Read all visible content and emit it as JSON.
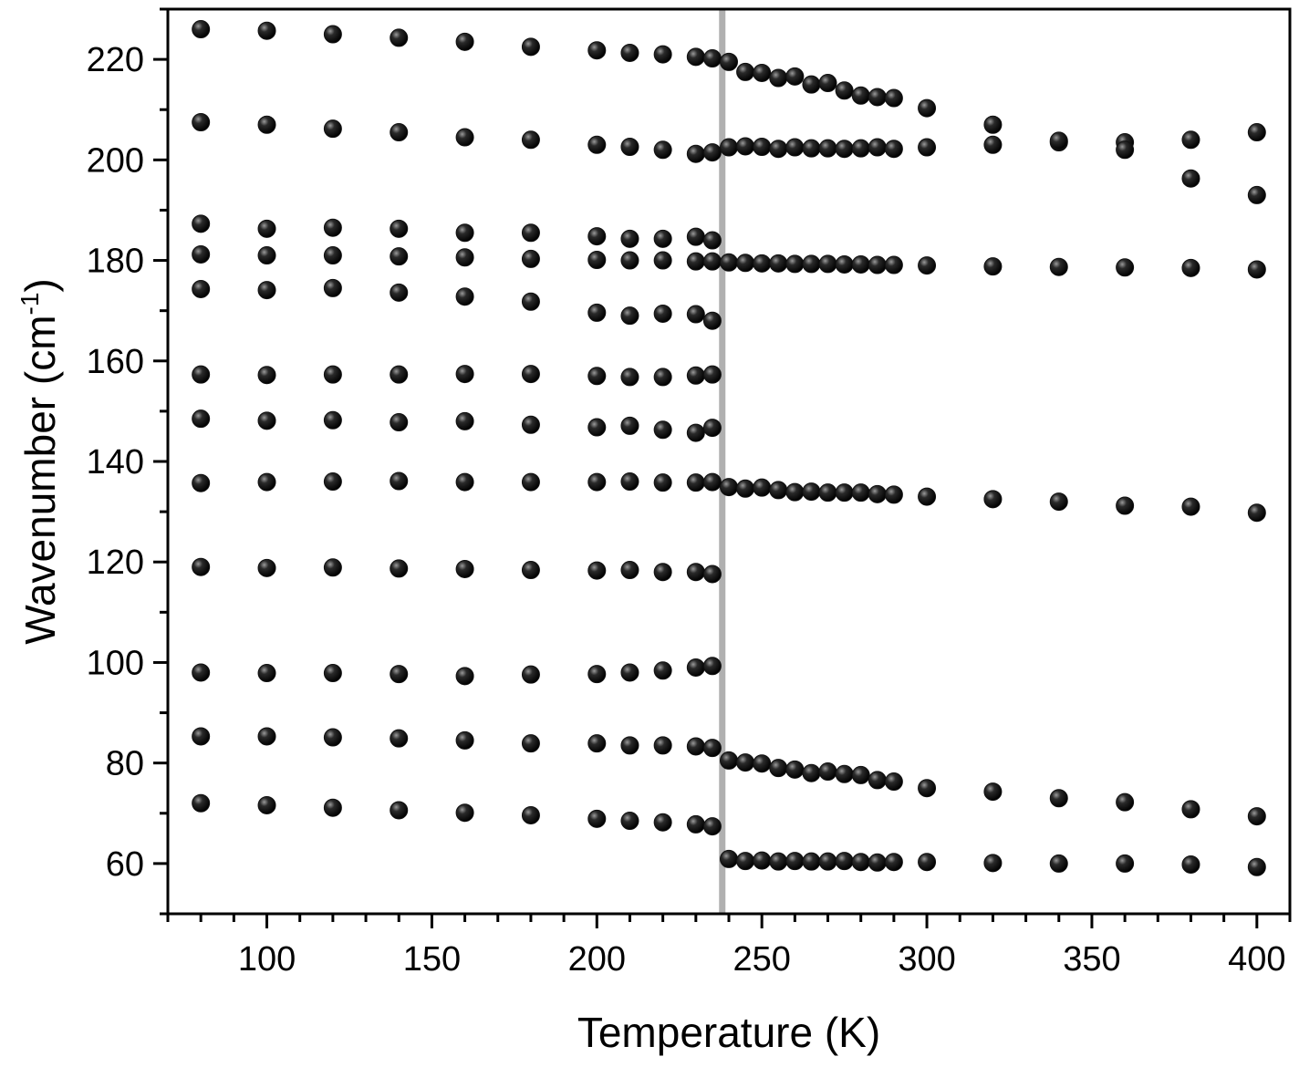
{
  "chart_data": {
    "type": "scatter",
    "title": "",
    "xlabel": "Temperature (K)",
    "ylabel": {
      "main": "Wavenumber (cm",
      "superscript": "-1",
      "close": ")"
    },
    "xlim": [
      70,
      410
    ],
    "ylim": [
      50,
      230
    ],
    "x_ticks": [
      100,
      150,
      200,
      250,
      300,
      350,
      400
    ],
    "y_ticks": [
      60,
      80,
      100,
      120,
      140,
      160,
      180,
      200,
      220
    ],
    "grid": false,
    "legend": "none",
    "marker_color": "#111111",
    "transition_line": {
      "x": 238,
      "color": "#b0b0b0"
    },
    "series": [
      {
        "points": [
          [
            80,
            226
          ],
          [
            100,
            225.7
          ],
          [
            120,
            225
          ],
          [
            140,
            224.3
          ],
          [
            160,
            223.5
          ],
          [
            180,
            222.5
          ],
          [
            200,
            221.8
          ],
          [
            210,
            221.3
          ],
          [
            220,
            221
          ],
          [
            230,
            220.5
          ],
          [
            235,
            220.2
          ],
          [
            240,
            219.5
          ],
          [
            245,
            217.5
          ],
          [
            250,
            217.3
          ],
          [
            255,
            216.3
          ],
          [
            260,
            216.6
          ],
          [
            265,
            215
          ],
          [
            270,
            215.3
          ],
          [
            275,
            213.8
          ],
          [
            280,
            212.8
          ],
          [
            285,
            212.5
          ],
          [
            290,
            212.3
          ],
          [
            300,
            210.3
          ]
        ]
      },
      {
        "points": [
          [
            80,
            207.5
          ],
          [
            100,
            207
          ],
          [
            120,
            206.2
          ],
          [
            140,
            205.5
          ],
          [
            160,
            204.5
          ],
          [
            180,
            204
          ],
          [
            200,
            203
          ],
          [
            210,
            202.6
          ],
          [
            220,
            202
          ],
          [
            230,
            201.2
          ],
          [
            235,
            201.5
          ],
          [
            240,
            202.5
          ],
          [
            245,
            202.7
          ],
          [
            250,
            202.6
          ],
          [
            255,
            202.2
          ],
          [
            260,
            202.5
          ],
          [
            265,
            202.3
          ],
          [
            270,
            202.3
          ],
          [
            275,
            202.2
          ],
          [
            280,
            202.3
          ],
          [
            285,
            202.5
          ],
          [
            290,
            202.2
          ],
          [
            300,
            202.5
          ],
          [
            320,
            203
          ],
          [
            340,
            203.5
          ],
          [
            360,
            203.5
          ],
          [
            380,
            204
          ],
          [
            400,
            205.5
          ]
        ]
      },
      {
        "points": [
          [
            320,
            207
          ],
          [
            340,
            203.8
          ],
          [
            360,
            202
          ]
        ]
      },
      {
        "points": [
          [
            380,
            196.3
          ],
          [
            400,
            193
          ]
        ]
      },
      {
        "points": [
          [
            80,
            187.3
          ],
          [
            100,
            186.3
          ],
          [
            120,
            186.5
          ],
          [
            140,
            186.3
          ],
          [
            160,
            185.5
          ],
          [
            180,
            185.5
          ],
          [
            200,
            184.8
          ],
          [
            210,
            184.3
          ],
          [
            220,
            184.3
          ],
          [
            230,
            184.7
          ],
          [
            235,
            184
          ]
        ]
      },
      {
        "points": [
          [
            80,
            181.2
          ],
          [
            100,
            181
          ],
          [
            120,
            181
          ],
          [
            140,
            180.8
          ],
          [
            160,
            180.6
          ],
          [
            180,
            180.3
          ],
          [
            200,
            180.1
          ],
          [
            210,
            180
          ],
          [
            220,
            180
          ],
          [
            230,
            179.8
          ],
          [
            235,
            179.8
          ],
          [
            240,
            179.6
          ],
          [
            245,
            179.5
          ],
          [
            250,
            179.4
          ],
          [
            255,
            179.4
          ],
          [
            260,
            179.3
          ],
          [
            265,
            179.3
          ],
          [
            270,
            179.3
          ],
          [
            275,
            179.2
          ],
          [
            280,
            179.2
          ],
          [
            285,
            179.1
          ],
          [
            290,
            179.1
          ],
          [
            300,
            179
          ],
          [
            320,
            178.8
          ],
          [
            340,
            178.7
          ],
          [
            360,
            178.6
          ],
          [
            380,
            178.5
          ],
          [
            400,
            178.2
          ]
        ]
      },
      {
        "points": [
          [
            80,
            174.3
          ],
          [
            100,
            174.1
          ],
          [
            120,
            174.5
          ],
          [
            140,
            173.6
          ],
          [
            160,
            172.8
          ],
          [
            180,
            171.8
          ],
          [
            200,
            169.6
          ],
          [
            210,
            169
          ],
          [
            220,
            169.4
          ],
          [
            230,
            169.3
          ],
          [
            235,
            168
          ]
        ]
      },
      {
        "points": [
          [
            80,
            157.3
          ],
          [
            100,
            157.2
          ],
          [
            120,
            157.3
          ],
          [
            140,
            157.3
          ],
          [
            160,
            157.4
          ],
          [
            180,
            157.4
          ],
          [
            200,
            157
          ],
          [
            210,
            156.8
          ],
          [
            220,
            156.8
          ],
          [
            230,
            157.1
          ],
          [
            235,
            157.3
          ]
        ]
      },
      {
        "points": [
          [
            80,
            148.5
          ],
          [
            100,
            148.1
          ],
          [
            120,
            148.2
          ],
          [
            140,
            147.8
          ],
          [
            160,
            148
          ],
          [
            180,
            147.3
          ],
          [
            200,
            146.8
          ],
          [
            210,
            147.1
          ],
          [
            220,
            146.3
          ],
          [
            230,
            145.7
          ],
          [
            235,
            146.7
          ]
        ]
      },
      {
        "points": [
          [
            80,
            135.7
          ],
          [
            100,
            135.9
          ],
          [
            120,
            136
          ],
          [
            140,
            136.1
          ],
          [
            160,
            135.9
          ],
          [
            180,
            135.9
          ],
          [
            200,
            135.9
          ],
          [
            210,
            136
          ],
          [
            220,
            135.8
          ],
          [
            230,
            135.8
          ],
          [
            235,
            135.9
          ],
          [
            240,
            134.9
          ],
          [
            245,
            134.6
          ],
          [
            250,
            134.8
          ],
          [
            255,
            134.3
          ],
          [
            260,
            133.9
          ],
          [
            265,
            134
          ],
          [
            270,
            133.8
          ],
          [
            275,
            133.8
          ],
          [
            280,
            133.8
          ],
          [
            285,
            133.5
          ],
          [
            290,
            133.4
          ],
          [
            300,
            133
          ],
          [
            320,
            132.5
          ],
          [
            340,
            132
          ],
          [
            360,
            131.2
          ],
          [
            380,
            131
          ],
          [
            400,
            129.8
          ]
        ]
      },
      {
        "points": [
          [
            80,
            119
          ],
          [
            100,
            118.8
          ],
          [
            120,
            118.9
          ],
          [
            140,
            118.7
          ],
          [
            160,
            118.6
          ],
          [
            180,
            118.4
          ],
          [
            200,
            118.3
          ],
          [
            210,
            118.4
          ],
          [
            220,
            118
          ],
          [
            230,
            118
          ],
          [
            235,
            117.6
          ]
        ]
      },
      {
        "points": [
          [
            80,
            98
          ],
          [
            100,
            97.9
          ],
          [
            120,
            97.9
          ],
          [
            140,
            97.7
          ],
          [
            160,
            97.3
          ],
          [
            180,
            97.6
          ],
          [
            200,
            97.7
          ],
          [
            210,
            98
          ],
          [
            220,
            98.4
          ],
          [
            230,
            99
          ],
          [
            235,
            99.3
          ]
        ]
      },
      {
        "points": [
          [
            80,
            85.3
          ],
          [
            100,
            85.3
          ],
          [
            120,
            85.1
          ],
          [
            140,
            84.9
          ],
          [
            160,
            84.5
          ],
          [
            180,
            83.9
          ],
          [
            200,
            83.9
          ],
          [
            210,
            83.5
          ],
          [
            220,
            83.5
          ],
          [
            230,
            83.3
          ],
          [
            235,
            83
          ],
          [
            240,
            80.5
          ],
          [
            245,
            80.1
          ],
          [
            250,
            79.9
          ],
          [
            255,
            79
          ],
          [
            260,
            78.7
          ],
          [
            265,
            78
          ],
          [
            270,
            78.3
          ],
          [
            275,
            77.8
          ],
          [
            280,
            77.6
          ],
          [
            285,
            76.6
          ],
          [
            290,
            76.3
          ],
          [
            300,
            75
          ],
          [
            320,
            74.3
          ],
          [
            340,
            73
          ],
          [
            360,
            72.2
          ],
          [
            380,
            70.8
          ],
          [
            400,
            69.4
          ]
        ]
      },
      {
        "points": [
          [
            80,
            72
          ],
          [
            100,
            71.6
          ],
          [
            120,
            71.1
          ],
          [
            140,
            70.6
          ],
          [
            160,
            70.1
          ],
          [
            180,
            69.6
          ],
          [
            200,
            68.9
          ],
          [
            210,
            68.5
          ],
          [
            220,
            68.2
          ],
          [
            230,
            67.8
          ],
          [
            235,
            67.4
          ]
        ]
      },
      {
        "points": [
          [
            240,
            60.9
          ],
          [
            245,
            60.5
          ],
          [
            250,
            60.6
          ],
          [
            255,
            60.4
          ],
          [
            260,
            60.5
          ],
          [
            265,
            60.4
          ],
          [
            270,
            60.4
          ],
          [
            275,
            60.5
          ],
          [
            280,
            60.3
          ],
          [
            285,
            60.2
          ],
          [
            290,
            60.3
          ],
          [
            300,
            60.3
          ],
          [
            320,
            60.1
          ],
          [
            340,
            60
          ],
          [
            360,
            60
          ],
          [
            380,
            59.8
          ],
          [
            400,
            59.3
          ]
        ]
      }
    ]
  }
}
